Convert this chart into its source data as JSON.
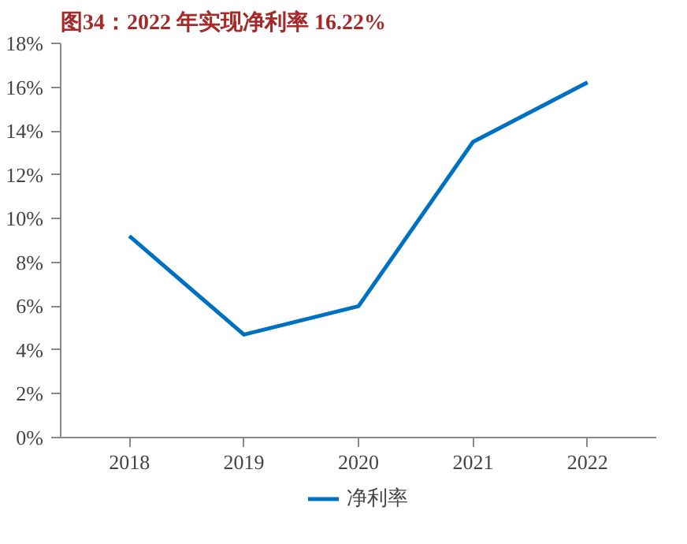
{
  "chart_data": {
    "type": "line",
    "title": "图34：2022 年实现净利率 16.22%",
    "categories": [
      "2018",
      "2019",
      "2020",
      "2021",
      "2022"
    ],
    "series": [
      {
        "name": "净利率",
        "color": "#0070c0",
        "values": [
          9.2,
          4.7,
          6.0,
          13.5,
          16.22
        ]
      }
    ],
    "ylim": [
      0,
      18
    ],
    "yticks": [
      {
        "value": 0,
        "label": "0%"
      },
      {
        "value": 2,
        "label": "2%"
      },
      {
        "value": 4,
        "label": "4%"
      },
      {
        "value": 6,
        "label": "6%"
      },
      {
        "value": 8,
        "label": "8%"
      },
      {
        "value": 10,
        "label": "10%"
      },
      {
        "value": 12,
        "label": "12%"
      },
      {
        "value": 14,
        "label": "14%"
      },
      {
        "value": 16,
        "label": "16%"
      },
      {
        "value": 18,
        "label": "18%"
      }
    ],
    "grid": false,
    "legend": "bottom",
    "marker": "none",
    "line_style": "solid"
  }
}
